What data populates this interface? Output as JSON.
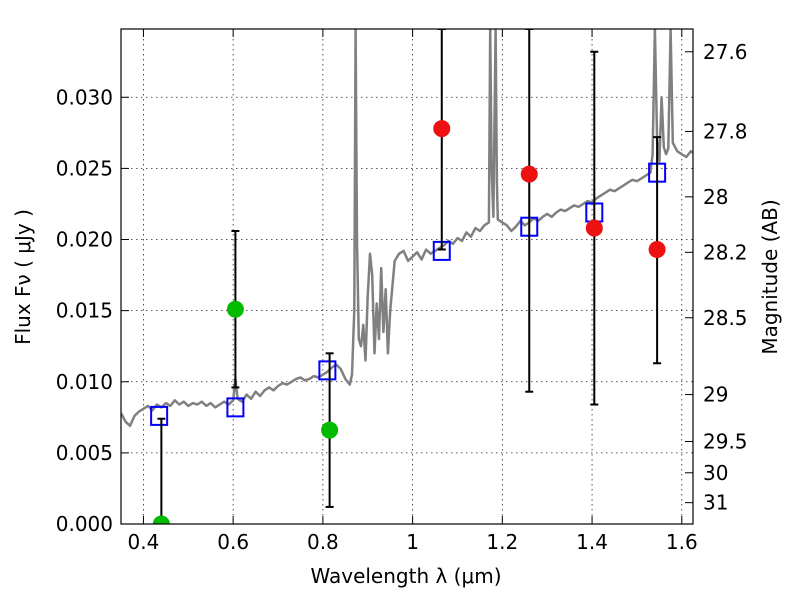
{
  "chart_data": {
    "type": "scatter",
    "xlabel": "Wavelength  λ (μm)",
    "ylabel": "Flux  Fν  ( μJy )",
    "ylabel_right": "Magnitude (AB)",
    "xlim": [
      0.35,
      1.625
    ],
    "ylim": [
      0.0,
      0.0348
    ],
    "grid": true,
    "x_ticks": [
      0.4,
      0.6,
      0.8,
      1.0,
      1.2,
      1.4,
      1.6
    ],
    "x_tick_labels": [
      "0.4",
      "0.6",
      "0.8",
      "1",
      "1.2",
      "1.4",
      "1.6"
    ],
    "y_ticks": [
      0.0,
      0.005,
      0.01,
      0.015,
      0.02,
      0.025,
      0.03
    ],
    "y_tick_labels": [
      "0.000",
      "0.005",
      "0.010",
      "0.015",
      "0.020",
      "0.025",
      "0.030"
    ],
    "right_ticks": [
      {
        "label": "27.6",
        "flux": 0.0332
      },
      {
        "label": "27.8",
        "flux": 0.0276
      },
      {
        "label": "28",
        "flux": 0.023
      },
      {
        "label": "28.2",
        "flux": 0.0191
      },
      {
        "label": "28.5",
        "flux": 0.0145
      },
      {
        "label": "29",
        "flux": 0.0091
      },
      {
        "label": "29.5",
        "flux": 0.0058
      },
      {
        "label": "30",
        "flux": 0.0036
      },
      {
        "label": "31",
        "flux": 0.0015
      }
    ],
    "series": [
      {
        "kind": "spectrum",
        "color": "#808080",
        "points": [
          [
            0.35,
            0.0078
          ],
          [
            0.36,
            0.0072
          ],
          [
            0.37,
            0.0069
          ],
          [
            0.38,
            0.0076
          ],
          [
            0.39,
            0.0079
          ],
          [
            0.4,
            0.0081
          ],
          [
            0.41,
            0.0083
          ],
          [
            0.42,
            0.008
          ],
          [
            0.43,
            0.0084
          ],
          [
            0.44,
            0.0082
          ],
          [
            0.45,
            0.0085
          ],
          [
            0.46,
            0.0083
          ],
          [
            0.47,
            0.0087
          ],
          [
            0.48,
            0.0084
          ],
          [
            0.49,
            0.0086
          ],
          [
            0.5,
            0.0083
          ],
          [
            0.51,
            0.0085
          ],
          [
            0.52,
            0.0084
          ],
          [
            0.53,
            0.0086
          ],
          [
            0.54,
            0.0083
          ],
          [
            0.55,
            0.0085
          ],
          [
            0.56,
            0.0082
          ],
          [
            0.57,
            0.0084
          ],
          [
            0.58,
            0.0086
          ],
          [
            0.59,
            0.0084
          ],
          [
            0.6,
            0.0087
          ],
          [
            0.605,
            0.0102
          ],
          [
            0.61,
            0.0088
          ],
          [
            0.62,
            0.0086
          ],
          [
            0.63,
            0.0091
          ],
          [
            0.64,
            0.0088
          ],
          [
            0.65,
            0.0093
          ],
          [
            0.66,
            0.009
          ],
          [
            0.67,
            0.0094
          ],
          [
            0.68,
            0.0096
          ],
          [
            0.69,
            0.0094
          ],
          [
            0.7,
            0.0097
          ],
          [
            0.71,
            0.0099
          ],
          [
            0.72,
            0.0098
          ],
          [
            0.73,
            0.01
          ],
          [
            0.74,
            0.0102
          ],
          [
            0.75,
            0.0103
          ],
          [
            0.76,
            0.0101
          ],
          [
            0.77,
            0.0102
          ],
          [
            0.78,
            0.0104
          ],
          [
            0.79,
            0.0103
          ],
          [
            0.8,
            0.0105
          ],
          [
            0.81,
            0.0107
          ],
          [
            0.82,
            0.011
          ],
          [
            0.83,
            0.0112
          ],
          [
            0.84,
            0.0109
          ],
          [
            0.85,
            0.0102
          ],
          [
            0.86,
            0.0098
          ],
          [
            0.865,
            0.0105
          ],
          [
            0.87,
            0.015
          ],
          [
            0.873,
            0.0348
          ],
          [
            0.876,
            0.02
          ],
          [
            0.88,
            0.013
          ],
          [
            0.885,
            0.0125
          ],
          [
            0.89,
            0.014
          ],
          [
            0.895,
            0.0115
          ],
          [
            0.9,
            0.016
          ],
          [
            0.905,
            0.019
          ],
          [
            0.91,
            0.0175
          ],
          [
            0.915,
            0.012
          ],
          [
            0.92,
            0.0155
          ],
          [
            0.925,
            0.013
          ],
          [
            0.93,
            0.018
          ],
          [
            0.935,
            0.0135
          ],
          [
            0.94,
            0.0165
          ],
          [
            0.945,
            0.012
          ],
          [
            0.95,
            0.015
          ],
          [
            0.96,
            0.0185
          ],
          [
            0.97,
            0.019
          ],
          [
            0.98,
            0.0192
          ],
          [
            0.99,
            0.0185
          ],
          [
            1.0,
            0.0188
          ],
          [
            1.01,
            0.0191
          ],
          [
            1.02,
            0.0186
          ],
          [
            1.03,
            0.0193
          ],
          [
            1.04,
            0.019
          ],
          [
            1.05,
            0.0192
          ],
          [
            1.06,
            0.0194
          ],
          [
            1.07,
            0.0196
          ],
          [
            1.08,
            0.0199
          ],
          [
            1.09,
            0.0197
          ],
          [
            1.1,
            0.0201
          ],
          [
            1.11,
            0.0199
          ],
          [
            1.12,
            0.0205
          ],
          [
            1.13,
            0.0202
          ],
          [
            1.14,
            0.0208
          ],
          [
            1.15,
            0.0206
          ],
          [
            1.16,
            0.021
          ],
          [
            1.17,
            0.0212
          ],
          [
            1.173,
            0.0348
          ],
          [
            1.176,
            0.025
          ],
          [
            1.18,
            0.0216
          ],
          [
            1.185,
            0.0348
          ],
          [
            1.188,
            0.024
          ],
          [
            1.19,
            0.0214
          ],
          [
            1.2,
            0.0212
          ],
          [
            1.21,
            0.021
          ],
          [
            1.22,
            0.0206
          ],
          [
            1.23,
            0.0209
          ],
          [
            1.24,
            0.0213
          ],
          [
            1.25,
            0.021
          ],
          [
            1.26,
            0.0212
          ],
          [
            1.27,
            0.0215
          ],
          [
            1.28,
            0.0213
          ],
          [
            1.29,
            0.0216
          ],
          [
            1.3,
            0.0218
          ],
          [
            1.31,
            0.0216
          ],
          [
            1.32,
            0.0219
          ],
          [
            1.33,
            0.0221
          ],
          [
            1.34,
            0.022
          ],
          [
            1.35,
            0.0222
          ],
          [
            1.36,
            0.0224
          ],
          [
            1.37,
            0.0223
          ],
          [
            1.38,
            0.0225
          ],
          [
            1.39,
            0.0227
          ],
          [
            1.4,
            0.0226
          ],
          [
            1.41,
            0.0229
          ],
          [
            1.42,
            0.0231
          ],
          [
            1.43,
            0.0233
          ],
          [
            1.44,
            0.0235
          ],
          [
            1.45,
            0.0234
          ],
          [
            1.46,
            0.0236
          ],
          [
            1.47,
            0.0238
          ],
          [
            1.48,
            0.024
          ],
          [
            1.49,
            0.0242
          ],
          [
            1.5,
            0.0241
          ],
          [
            1.51,
            0.0243
          ],
          [
            1.52,
            0.0245
          ],
          [
            1.53,
            0.0247
          ],
          [
            1.535,
            0.026
          ],
          [
            1.54,
            0.0348
          ],
          [
            1.545,
            0.027
          ],
          [
            1.55,
            0.0255
          ],
          [
            1.555,
            0.03
          ],
          [
            1.56,
            0.0265
          ],
          [
            1.565,
            0.026
          ],
          [
            1.57,
            0.0264
          ],
          [
            1.575,
            0.0348
          ],
          [
            1.58,
            0.0268
          ],
          [
            1.59,
            0.0262
          ],
          [
            1.6,
            0.026
          ],
          [
            1.61,
            0.0258
          ],
          [
            1.62,
            0.0262
          ],
          [
            1.625,
            0.0261
          ]
        ]
      },
      {
        "kind": "squares",
        "color": "#0000ff",
        "points": [
          [
            0.435,
            0.0076
          ],
          [
            0.605,
            0.0082
          ],
          [
            0.81,
            0.0108
          ],
          [
            1.065,
            0.0192
          ],
          [
            1.26,
            0.0209
          ],
          [
            1.405,
            0.0219
          ],
          [
            1.545,
            0.0247
          ]
        ]
      },
      {
        "kind": "errorbars",
        "color": "#000000",
        "bars": [
          {
            "x": 0.44,
            "low": 0.0,
            "high": 0.0074
          },
          {
            "x": 0.605,
            "low": 0.0096,
            "high": 0.0206
          },
          {
            "x": 0.815,
            "low": 0.0012,
            "high": 0.012
          },
          {
            "x": 1.065,
            "low": 0.0193,
            "high": 0.0348
          },
          {
            "x": 1.26,
            "low": 0.0093,
            "high": 0.0348
          },
          {
            "x": 1.405,
            "low": 0.0084,
            "high": 0.0332
          },
          {
            "x": 1.545,
            "low": 0.0113,
            "high": 0.0272
          }
        ]
      },
      {
        "kind": "circles",
        "color": "#00bb00",
        "points": [
          [
            0.44,
            0.0
          ],
          [
            0.605,
            0.0151
          ],
          [
            0.815,
            0.0066
          ]
        ]
      },
      {
        "kind": "circles",
        "color": "#ee1111",
        "points": [
          [
            1.065,
            0.0278
          ],
          [
            1.26,
            0.0246
          ],
          [
            1.405,
            0.0208
          ],
          [
            1.545,
            0.0193
          ]
        ]
      }
    ]
  }
}
